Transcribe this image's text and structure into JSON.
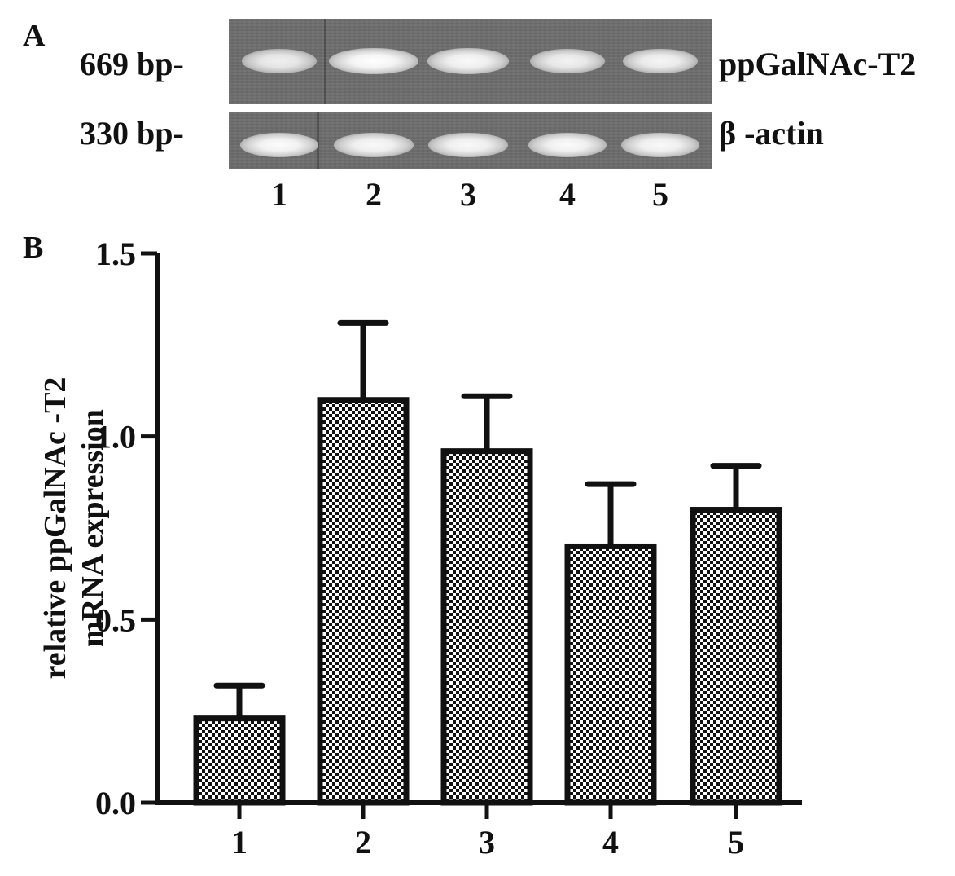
{
  "panel_a": {
    "label": "A",
    "bands": [
      {
        "size_label": "669 bp-",
        "gene": "ppGalNAc-T2",
        "intensities": [
          0.75,
          1.0,
          0.9,
          0.8,
          0.85
        ]
      },
      {
        "size_label": "330 bp-",
        "gene": "β -actin",
        "intensities": [
          0.95,
          0.9,
          0.92,
          0.93,
          0.92
        ]
      }
    ],
    "lanes": [
      "1",
      "2",
      "3",
      "4",
      "5"
    ]
  },
  "panel_b": {
    "label": "B"
  },
  "chart_data": {
    "type": "bar",
    "categories": [
      "1",
      "2",
      "3",
      "4",
      "5"
    ],
    "values": [
      0.23,
      1.1,
      0.96,
      0.7,
      0.8
    ],
    "errors": [
      0.09,
      0.21,
      0.15,
      0.17,
      0.12
    ],
    "ylabel_lines": [
      "relative ppGalNAc -T2",
      "mRNA expression"
    ],
    "xlabel": "",
    "ylim": [
      0,
      1.5
    ],
    "yticks": [
      0.0,
      0.5,
      1.0,
      1.5
    ],
    "ytick_labels": [
      "0.0",
      "0.5",
      "1.0",
      "1.5"
    ],
    "bar_fill": "checkered",
    "bar_color": "#111111",
    "grid": false,
    "legend": "none"
  }
}
